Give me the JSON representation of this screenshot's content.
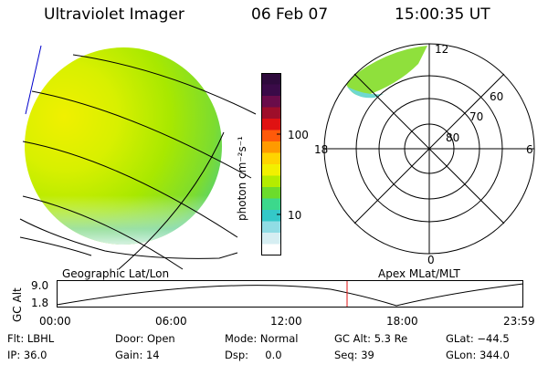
{
  "header": {
    "instrument": "Ultraviolet Imager",
    "date": "06 Feb 07",
    "time": "15:00:35 UT"
  },
  "image_panel": {
    "caption": "Geographic Lat/Lon"
  },
  "colorbar": {
    "label": "photon cm⁻²s⁻¹",
    "ticks": [
      "100",
      "10"
    ],
    "colors": [
      "#2e0a3c",
      "#3a0a48",
      "#6a0c4a",
      "#9e0e2a",
      "#e01212",
      "#ff5a0a",
      "#ff9a00",
      "#ffd400",
      "#f2f000",
      "#b4ec00",
      "#6cdc2c",
      "#3cd88c",
      "#34c8c8",
      "#90dce4",
      "#d6eef2",
      "#ffffff"
    ]
  },
  "polar_plot": {
    "caption": "Apex MLat/MLT",
    "mlt_labels": {
      "top": "12",
      "left": "18",
      "right": "6",
      "bottom": "0"
    },
    "lat_labels": [
      "60",
      "70",
      "80"
    ]
  },
  "altitude_plot": {
    "ylabel": "GC Alt",
    "yticks": [
      "9.0",
      "1.8"
    ],
    "xticks": [
      "00:00",
      "06:00",
      "12:00",
      "18:00",
      "23:59"
    ],
    "marker_color": "#e01212"
  },
  "info": {
    "row1": {
      "filter": "Flt: LBHL",
      "door": "Door: Open",
      "mode": "Mode: Normal",
      "gc_alt": "GC Alt: 5.3 Re",
      "glat": "GLat: −44.5"
    },
    "row2": {
      "ip": "IP: 36.0",
      "gain": "Gain: 14",
      "dsp": "Dsp:     0.0",
      "seq": "Seq: 39",
      "glon": "GLon: 344.0"
    }
  }
}
